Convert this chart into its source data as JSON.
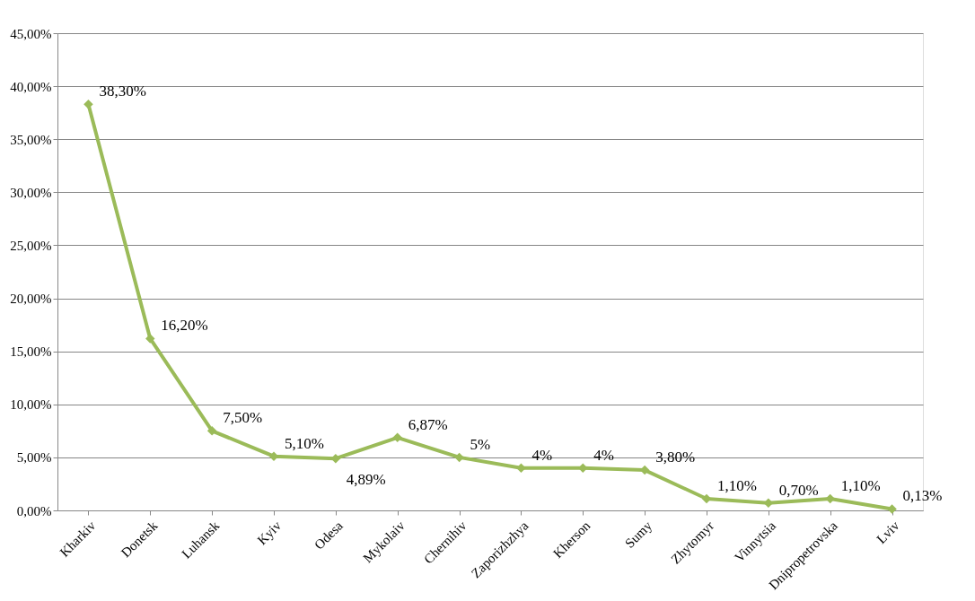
{
  "chart_data": {
    "type": "line",
    "categories": [
      "Kharkiv",
      "Donetsk",
      "Luhansk",
      "Kyiv",
      "Odesa",
      "Mykolaiv",
      "Chernihiv",
      "Zaporizhzhya",
      "Kherson",
      "Sumy",
      "Zhytomyr",
      "Vinnytsia",
      "Dnipropetrovska",
      "Lviv"
    ],
    "series": [
      {
        "color": "#9bbb59",
        "values": [
          38.3,
          16.2,
          7.5,
          5.1,
          4.89,
          6.87,
          5,
          4,
          4,
          3.8,
          1.1,
          0.7,
          1.1,
          0.13
        ],
        "value_labels": [
          "38,30%",
          "16,20%",
          "7,50%",
          "5,10%",
          "4,89%",
          "6,87%",
          "5%",
          "4%",
          "4%",
          "3,80%",
          "1,10%",
          "0,70%",
          "1,10%",
          "0,13%"
        ]
      }
    ],
    "ylim": [
      0,
      45
    ],
    "yticks": [
      {
        "value": 0,
        "label": "0,00%"
      },
      {
        "value": 5,
        "label": "5,00%"
      },
      {
        "value": 10,
        "label": "10,00%"
      },
      {
        "value": 15,
        "label": "15,00%"
      },
      {
        "value": 20,
        "label": "20,00%"
      },
      {
        "value": 25,
        "label": "25,00%"
      },
      {
        "value": 30,
        "label": "30,00%"
      },
      {
        "value": 35,
        "label": "35,00%"
      },
      {
        "value": 40,
        "label": "40,00%"
      },
      {
        "value": 45,
        "label": "45,00%"
      }
    ],
    "grid": "y",
    "marker": "diamond",
    "line_style": "solid"
  }
}
